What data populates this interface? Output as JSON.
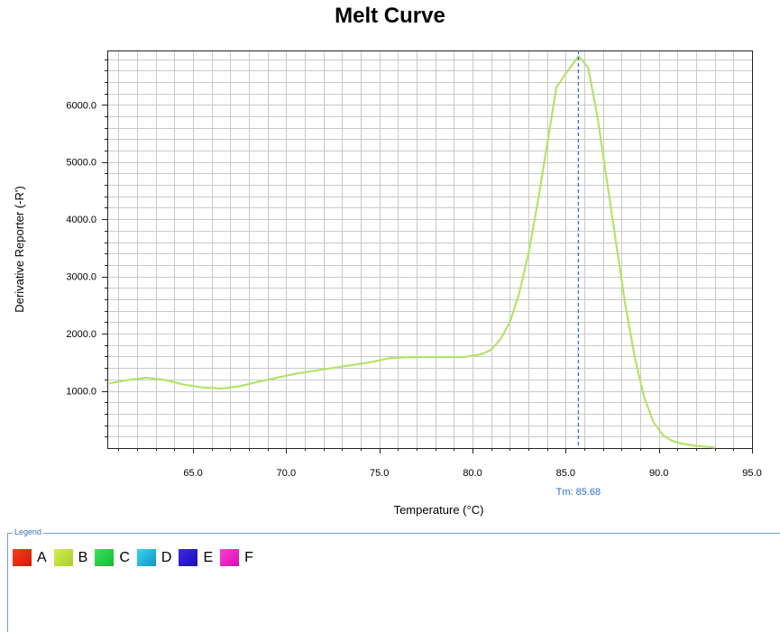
{
  "chart_data": {
    "type": "line",
    "title": "Melt Curve",
    "xlabel": "Temperature (°C)",
    "ylabel": "Derivative Reporter (-R')",
    "xlim": [
      60.4,
      95.0
    ],
    "ylim": [
      0,
      6950
    ],
    "x_ticks": [
      "65.0",
      "70.0",
      "75.0",
      "80.0",
      "85.0",
      "90.0",
      "95.0"
    ],
    "x_tick_values": [
      65,
      70,
      75,
      80,
      85,
      90,
      95
    ],
    "y_ticks": [
      "1000.0",
      "2000.0",
      "3000.0",
      "4000.0",
      "5000.0",
      "6000.0"
    ],
    "y_tick_values": [
      1000,
      2000,
      3000,
      4000,
      5000,
      6000
    ],
    "grid": true,
    "series": [
      {
        "name": "B",
        "color": "#b5e26a",
        "x": [
          60.5,
          61.5,
          62.5,
          63.5,
          64.5,
          65.5,
          66.5,
          67.5,
          68.5,
          69.5,
          70.5,
          71.5,
          72.5,
          73.5,
          74.5,
          75.5,
          76.5,
          77.5,
          78.5,
          79.5,
          80.5,
          81.0,
          81.5,
          82.0,
          82.5,
          83.0,
          83.5,
          84.0,
          84.5,
          85.0,
          85.7,
          86.2,
          86.7,
          87.2,
          87.7,
          88.2,
          88.7,
          89.2,
          89.7,
          90.2,
          90.7,
          91.2,
          92.0,
          93.0
        ],
        "values": [
          1130,
          1190,
          1230,
          1190,
          1110,
          1060,
          1040,
          1080,
          1160,
          1230,
          1300,
          1350,
          1400,
          1450,
          1500,
          1570,
          1590,
          1590,
          1590,
          1590,
          1640,
          1720,
          1900,
          2200,
          2700,
          3400,
          4300,
          5300,
          6300,
          6550,
          6850,
          6650,
          5800,
          4700,
          3600,
          2500,
          1600,
          900,
          460,
          230,
          130,
          80,
          40,
          10
        ]
      }
    ],
    "annotations": [
      {
        "type": "vline",
        "x": 85.68,
        "label": "Tm: 85.68",
        "color": "#2e6fd6"
      }
    ]
  },
  "legend": {
    "title": "Legend",
    "items": [
      {
        "label": "A",
        "color_from": "#ff3b1a",
        "color_to": "#c81e0a"
      },
      {
        "label": "B",
        "color_from": "#d4ec4a",
        "color_to": "#a6d12e"
      },
      {
        "label": "C",
        "color_from": "#39e25a",
        "color_to": "#17b835"
      },
      {
        "label": "D",
        "color_from": "#38d6f0",
        "color_to": "#1193c8"
      },
      {
        "label": "E",
        "color_from": "#3a2ae6",
        "color_to": "#1a0fb0"
      },
      {
        "label": "F",
        "color_from": "#ff3fd3",
        "color_to": "#d011b0"
      }
    ]
  }
}
